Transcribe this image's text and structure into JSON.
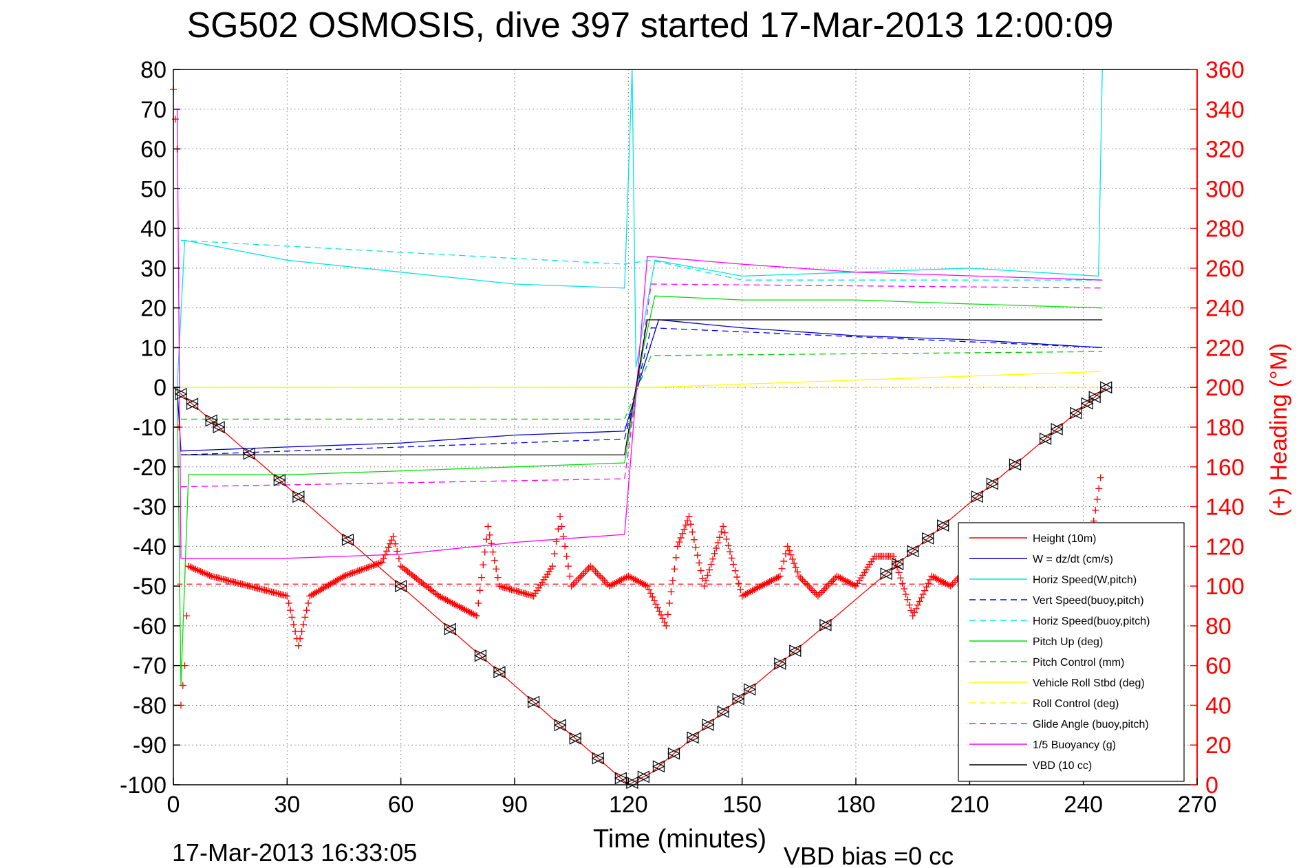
{
  "chart_data": {
    "type": "line",
    "title": "SG502 OSMOSIS, dive 397 started 17-Mar-2013 12:00:09",
    "xlabel": "Time (minutes)",
    "ylabel": "",
    "y2label": "(+) Heading (°M)",
    "xlim": [
      0,
      270
    ],
    "ylim": [
      -100,
      80
    ],
    "y2lim": [
      0,
      360
    ],
    "xticks": [
      "0",
      "30",
      "60",
      "90",
      "120",
      "150",
      "180",
      "210",
      "240",
      "270"
    ],
    "yticks": [
      "80",
      "70",
      "60",
      "50",
      "40",
      "30",
      "20",
      "10",
      "0",
      "-10",
      "-20",
      "-30",
      "-40",
      "-50",
      "-60",
      "-70",
      "-80",
      "-90",
      "-100"
    ],
    "y2ticks": [
      "360",
      "340",
      "320",
      "300",
      "280",
      "260",
      "240",
      "220",
      "200",
      "180",
      "160",
      "140",
      "120",
      "100",
      "80",
      "60",
      "40",
      "20",
      "0"
    ],
    "grid": true,
    "legend_position": "lower-right",
    "footer_left": "17-Mar-2013 16:33:05",
    "footer_right": "VBD bias =0 cc",
    "series": [
      {
        "name": "Height (10m)",
        "color": "#ff0000",
        "style": "solid",
        "points": [
          [
            0,
            0
          ],
          [
            120,
            -100
          ],
          [
            126,
            -97
          ],
          [
            246,
            0
          ]
        ]
      },
      {
        "name": "W = dz/dt (cm/s)",
        "color": "#0000cc",
        "style": "solid",
        "points": [
          [
            1,
            0
          ],
          [
            2,
            -16
          ],
          [
            30,
            -15
          ],
          [
            60,
            -14
          ],
          [
            90,
            -12
          ],
          [
            119,
            -11
          ],
          [
            124,
            5
          ],
          [
            128,
            17
          ],
          [
            150,
            15
          ],
          [
            180,
            13
          ],
          [
            210,
            12
          ],
          [
            245,
            10
          ]
        ]
      },
      {
        "name": "Horiz Speed(W,pitch)",
        "color": "#00e5e5",
        "style": "solid",
        "points": [
          [
            1,
            0
          ],
          [
            3,
            37
          ],
          [
            30,
            32
          ],
          [
            60,
            29
          ],
          [
            90,
            26
          ],
          [
            119,
            25
          ],
          [
            121,
            80
          ],
          [
            122,
            5
          ],
          [
            127,
            32
          ],
          [
            150,
            28
          ],
          [
            180,
            29
          ],
          [
            210,
            30
          ],
          [
            244,
            28
          ],
          [
            245,
            80
          ]
        ]
      },
      {
        "name": "Vert Speed(buoy,pitch)",
        "color": "#0000ff",
        "style": "dashed",
        "points": [
          [
            2,
            -17
          ],
          [
            119,
            -13
          ],
          [
            126,
            15
          ],
          [
            245,
            10
          ]
        ]
      },
      {
        "name": "Horiz Speed(buoy,pitch)",
        "color": "#00e5e5",
        "style": "dashed",
        "points": [
          [
            2,
            37
          ],
          [
            60,
            34
          ],
          [
            119,
            31
          ],
          [
            126,
            32
          ],
          [
            150,
            27
          ],
          [
            245,
            27
          ]
        ]
      },
      {
        "name": "Pitch Up (deg)",
        "color": "#00dd00",
        "style": "solid",
        "points": [
          [
            1,
            0
          ],
          [
            2,
            -75
          ],
          [
            4,
            -22
          ],
          [
            30,
            -22
          ],
          [
            60,
            -21
          ],
          [
            90,
            -20
          ],
          [
            119,
            -19
          ],
          [
            124,
            10
          ],
          [
            127,
            23
          ],
          [
            150,
            22
          ],
          [
            180,
            22
          ],
          [
            210,
            21
          ],
          [
            245,
            20
          ]
        ]
      },
      {
        "name": "Pitch Control (mm)",
        "color": "#00cc00",
        "style": "dashed",
        "points": [
          [
            2,
            -8
          ],
          [
            119,
            -8
          ],
          [
            126,
            8
          ],
          [
            245,
            9
          ]
        ]
      },
      {
        "name": "Vehicle Roll Stbd (deg)",
        "color": "#ffff00",
        "style": "solid",
        "points": [
          [
            1,
            0
          ],
          [
            119,
            0
          ],
          [
            126,
            0
          ],
          [
            245,
            4
          ]
        ]
      },
      {
        "name": "Roll Control (deg)",
        "color": "#ffff00",
        "style": "dashed",
        "points": [
          [
            2,
            0
          ],
          [
            119,
            0
          ],
          [
            126,
            0
          ],
          [
            245,
            0
          ]
        ]
      },
      {
        "name": "Glide Angle (buoy,pitch)",
        "color": "#ff00ff",
        "style": "dashed",
        "points": [
          [
            2,
            -25
          ],
          [
            119,
            -23
          ],
          [
            126,
            26
          ],
          [
            245,
            25
          ]
        ]
      },
      {
        "name": "1/5 Buoyancy (g)",
        "color": "#ff00ff",
        "style": "solid",
        "points": [
          [
            1,
            70
          ],
          [
            2,
            -43
          ],
          [
            30,
            -43
          ],
          [
            60,
            -42
          ],
          [
            90,
            -39
          ],
          [
            119,
            -37
          ],
          [
            125,
            33
          ],
          [
            150,
            31
          ],
          [
            180,
            29
          ],
          [
            245,
            27
          ]
        ]
      },
      {
        "name": "VBD (10 cc)",
        "color": "#000000",
        "style": "solid",
        "points": [
          [
            2,
            -17
          ],
          [
            119,
            -17
          ],
          [
            125,
            17
          ],
          [
            245,
            17
          ]
        ]
      }
    ],
    "heading": {
      "color": "#ff0000",
      "marker": "+",
      "axis": "right",
      "mean": 101,
      "points": [
        [
          0,
          350
        ],
        [
          1,
          320
        ],
        [
          2,
          40
        ],
        [
          3,
          60
        ],
        [
          4,
          110
        ],
        [
          10,
          105
        ],
        [
          20,
          100
        ],
        [
          30,
          95
        ],
        [
          33,
          70
        ],
        [
          36,
          95
        ],
        [
          45,
          105
        ],
        [
          55,
          112
        ],
        [
          58,
          125
        ],
        [
          60,
          110
        ],
        [
          70,
          95
        ],
        [
          80,
          85
        ],
        [
          83,
          130
        ],
        [
          86,
          100
        ],
        [
          95,
          95
        ],
        [
          100,
          110
        ],
        [
          102,
          135
        ],
        [
          105,
          100
        ],
        [
          110,
          110
        ],
        [
          115,
          100
        ],
        [
          120,
          105
        ],
        [
          125,
          100
        ],
        [
          130,
          80
        ],
        [
          133,
          120
        ],
        [
          136,
          135
        ],
        [
          140,
          100
        ],
        [
          145,
          130
        ],
        [
          150,
          95
        ],
        [
          160,
          105
        ],
        [
          162,
          120
        ],
        [
          165,
          105
        ],
        [
          170,
          95
        ],
        [
          175,
          105
        ],
        [
          180,
          100
        ],
        [
          185,
          115
        ],
        [
          190,
          115
        ],
        [
          195,
          85
        ],
        [
          200,
          105
        ],
        [
          205,
          100
        ],
        [
          210,
          110
        ],
        [
          215,
          95
        ],
        [
          220,
          105
        ],
        [
          230,
          110
        ],
        [
          240,
          100
        ],
        [
          245,
          160
        ]
      ]
    },
    "dive_markers": {
      "marker": "triangle",
      "color": "#000000",
      "times": [
        2,
        5,
        10,
        12,
        20,
        28,
        33,
        46,
        60,
        73,
        81,
        86,
        95,
        102,
        106,
        112,
        118,
        121,
        124,
        128,
        132,
        137,
        141,
        145,
        149,
        152,
        160,
        164,
        172,
        188,
        191,
        195,
        199,
        203,
        212,
        216,
        222,
        230,
        233,
        238,
        241,
        243,
        246
      ]
    }
  }
}
